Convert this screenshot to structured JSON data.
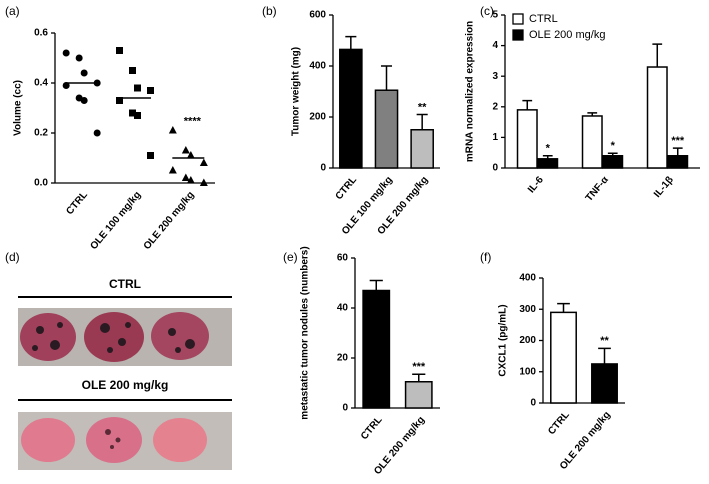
{
  "chart_data": [
    {
      "type": "dot",
      "label": "(a)",
      "y_label": "Volume (cc)",
      "categories": [
        "CTRL",
        "OLE 100 mg/kg",
        "OLE 200 mg/kg"
      ],
      "groups": [
        [
          0.52,
          0.5,
          0.44,
          0.4,
          0.39,
          0.34,
          0.33,
          0.2
        ],
        [
          0.53,
          0.45,
          0.38,
          0.37,
          0.33,
          0.28,
          0.27,
          0.11
        ],
        [
          0.21,
          0.13,
          0.11,
          0.08,
          0.05,
          0.02,
          0.01,
          0.0
        ]
      ],
      "means": [
        0.4,
        0.34,
        0.1
      ],
      "markers": [
        "circle",
        "square",
        "triangle"
      ],
      "color": "#000000",
      "annotations": [
        null,
        null,
        "****"
      ],
      "ylim": [
        0,
        0.6
      ],
      "yticks": [
        {
          "value": 0,
          "label": "0.0"
        },
        0.2,
        0.4,
        0.6
      ]
    },
    {
      "type": "bar",
      "label": "(b)",
      "y_label": "Tumor weight (mg)",
      "categories": [
        "CTRL",
        "OLE 100 mg/kg",
        "OLE 200 mg/kg"
      ],
      "values": [
        465,
        305,
        150
      ],
      "errors": [
        50,
        95,
        60
      ],
      "colors": [
        "#000000",
        "#808080",
        "#bdbdbd"
      ],
      "annotations": [
        null,
        null,
        "**"
      ],
      "ylim": [
        0,
        600
      ],
      "yticks": [
        0,
        200,
        400,
        600
      ]
    },
    {
      "type": "grouped_bar",
      "label": "(c)",
      "y_label": "mRNA normalized expression",
      "categories": [
        "IL-6",
        "TNF-α",
        "IL-1β"
      ],
      "series": [
        {
          "name": "CTRL",
          "color": "#ffffff",
          "values": [
            1.9,
            1.7,
            3.3
          ],
          "errors": [
            0.3,
            0.1,
            0.75
          ]
        },
        {
          "name": "OLE 200 mg/kg",
          "color": "#000000",
          "values": [
            0.3,
            0.4,
            0.4
          ],
          "errors": [
            0.1,
            0.08,
            0.25
          ]
        }
      ],
      "annotations": [
        "*",
        "*",
        "***"
      ],
      "legend": "top-left",
      "ylim": [
        0,
        5
      ],
      "yticks": [
        0,
        1,
        2,
        3,
        4,
        5
      ]
    },
    {
      "type": "bar",
      "label": "(e)",
      "y_label": "metastatic tumor nodules (numbers)",
      "categories": [
        "CTRL",
        "OLE 200 mg/kg"
      ],
      "values": [
        47,
        10.5
      ],
      "errors": [
        4,
        3
      ],
      "colors": [
        "#000000",
        "#bdbdbd"
      ],
      "annotations": [
        null,
        "***"
      ],
      "ylim": [
        0,
        60
      ],
      "yticks": [
        0,
        20,
        40,
        60
      ]
    },
    {
      "type": "bar",
      "label": "(f)",
      "y_label": "CXCL1 (pg/mL)",
      "categories": [
        "CTRL",
        "OLE 200 mg/kg"
      ],
      "values": [
        290,
        125
      ],
      "errors": [
        28,
        50
      ],
      "colors": [
        "#ffffff",
        "#000000"
      ],
      "annotations": [
        null,
        "**"
      ],
      "ylim": [
        0,
        400
      ],
      "yticks": [
        0,
        100,
        200,
        300,
        400
      ]
    }
  ],
  "photo_panel": {
    "label": "(d)",
    "groups": [
      "CTRL",
      "OLE 200 mg/kg"
    ]
  }
}
